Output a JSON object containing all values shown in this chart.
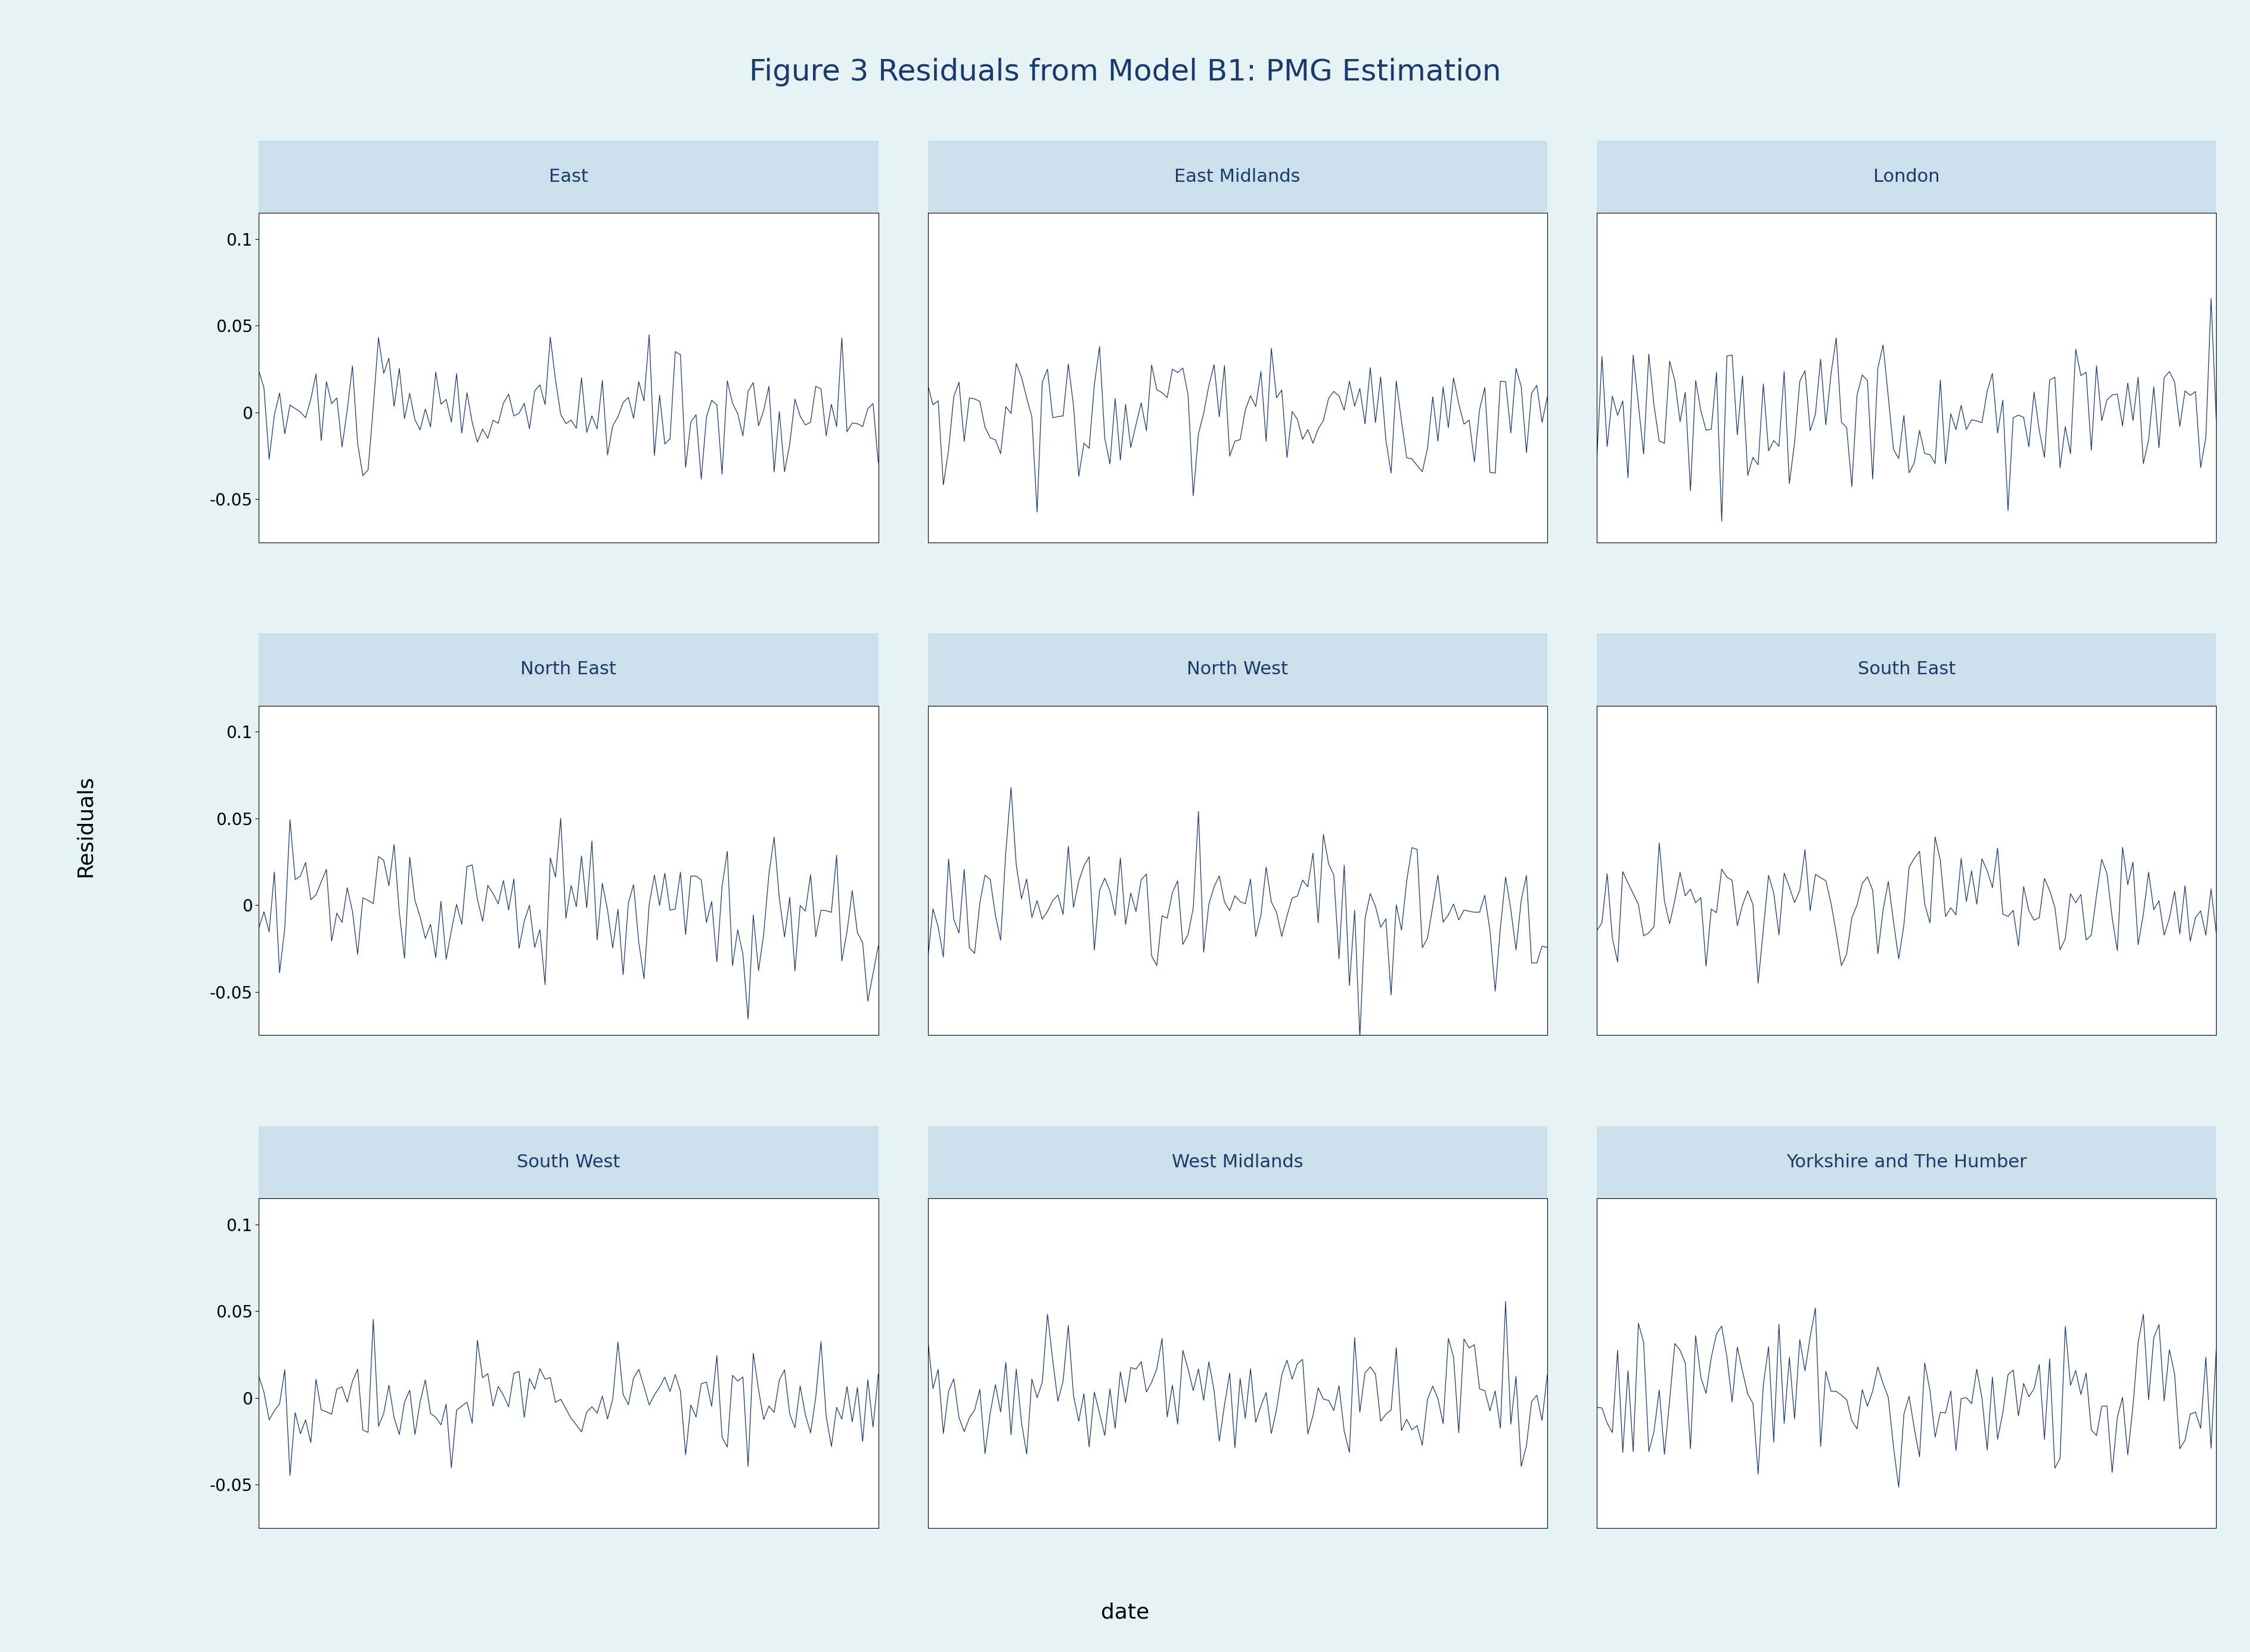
{
  "title": "Figure 3 Residuals from Model B1: PMG Estimation",
  "title_color": "#1b3a6b",
  "ylabel": "Residuals",
  "xlabel": "date",
  "background_color": "#e5f3f7",
  "subplot_bg": "#ffffff",
  "header_bg": "#cce0eb",
  "line_color": "#1b3a6b",
  "line_width": 0.9,
  "regions": [
    "East",
    "East Midlands",
    "London",
    "North East",
    "North West",
    "South East",
    "South West",
    "West Midlands",
    "Yorkshire and The Humber"
  ],
  "ylim": [
    -0.075,
    0.115
  ],
  "yticks": [
    -0.05,
    0,
    0.05,
    0.1
  ],
  "ytick_labels": [
    "-0.05",
    "0",
    "0.05",
    "0.1"
  ],
  "n_points": 120,
  "seeds": [
    10,
    20,
    30,
    40,
    50,
    60,
    70,
    80,
    90
  ],
  "amplitudes": [
    0.018,
    0.018,
    0.022,
    0.022,
    0.02,
    0.016,
    0.015,
    0.018,
    0.024
  ],
  "ar_coefs": [
    0.05,
    0.05,
    0.05,
    0.08,
    0.05,
    0.05,
    0.05,
    0.05,
    0.05
  ],
  "title_fontsize": 36,
  "region_fontsize": 22,
  "tick_fontsize": 20,
  "label_fontsize": 26,
  "ylabel_fontsize": 26
}
